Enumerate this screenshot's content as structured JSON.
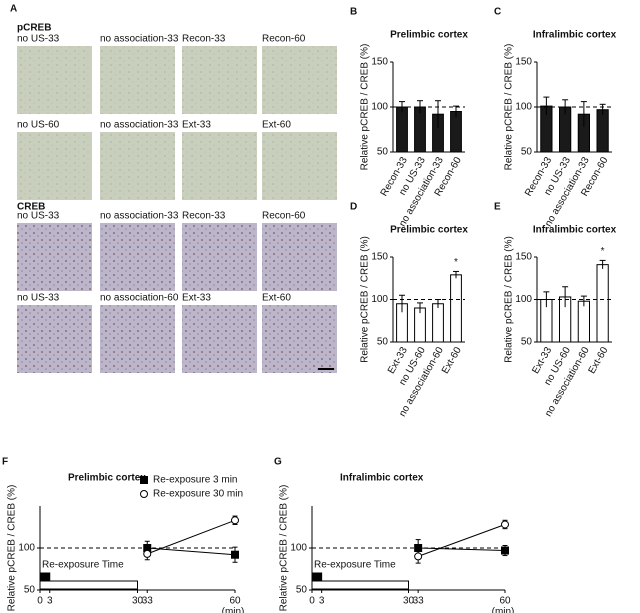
{
  "panel_a": {
    "label": "A",
    "groups": [
      {
        "title": "pCREB",
        "tiles": [
          [
            "no US-33",
            "no association-33",
            "Recon-33",
            "Recon-60"
          ],
          [
            "no US-60",
            "no association-33",
            "Ext-33",
            "Ext-60"
          ]
        ]
      },
      {
        "title": "CREB",
        "tiles": [
          [
            "no US-33",
            "no association-33",
            "Recon-33",
            "Recon-60"
          ],
          [
            "no US-33",
            "no association-60",
            "Ext-33",
            "Ext-60"
          ]
        ]
      }
    ]
  },
  "chart_data": [
    {
      "type": "bar",
      "panel": "B",
      "title": "Prelimbic cortex",
      "y_label": "Relative pCREB / CREB (%)",
      "categories": [
        "Recon-33",
        "no US-33",
        "no association-33",
        "Recon-60"
      ],
      "values": [
        100,
        100,
        92,
        95
      ],
      "errors": [
        6,
        7,
        15,
        6
      ],
      "color": "#1a1a1a",
      "ylim": [
        50,
        150
      ],
      "yticks": [
        50,
        100,
        150
      ],
      "reference_line": 100
    },
    {
      "type": "bar",
      "panel": "C",
      "title": "Infralimbic cortex",
      "y_label": "Relative pCREB / CREB (%)",
      "categories": [
        "Recon-33",
        "no US-33",
        "no association-33",
        "Recon-60"
      ],
      "values": [
        101,
        100,
        92,
        97
      ],
      "errors": [
        10,
        8,
        14,
        6
      ],
      "color": "#1a1a1a",
      "ylim": [
        50,
        150
      ],
      "yticks": [
        50,
        100,
        150
      ],
      "reference_line": 100
    },
    {
      "type": "bar",
      "panel": "D",
      "title": "Prelimbic cortex",
      "y_label": "Relative pCREB / CREB (%)",
      "categories": [
        "Ext-33",
        "no US-60",
        "no association-60",
        "Ext-60"
      ],
      "values": [
        95,
        90,
        95,
        129
      ],
      "errors": [
        10,
        6,
        5,
        4
      ],
      "color": "#ffffff",
      "ylim": [
        50,
        150
      ],
      "yticks": [
        50,
        100,
        150
      ],
      "reference_line": 100,
      "annotations": [
        {
          "category": "Ext-60",
          "text": "*"
        }
      ]
    },
    {
      "type": "bar",
      "panel": "E",
      "title": "Infralimbic cortex",
      "y_label": "Relative pCREB / CREB (%)",
      "categories": [
        "Ext-33",
        "no US-60",
        "no association-60",
        "Ext-60"
      ],
      "values": [
        100,
        103,
        98,
        141
      ],
      "errors": [
        9,
        12,
        6,
        5
      ],
      "color": "#ffffff",
      "ylim": [
        50,
        150
      ],
      "yticks": [
        50,
        100,
        150
      ],
      "reference_line": 100,
      "annotations": [
        {
          "category": "Ext-60",
          "text": "*"
        }
      ]
    },
    {
      "type": "line",
      "panel": "F",
      "title": "Prelimbic cortex",
      "y_label": "Relative pCREB / CREB (%)",
      "x_label": "(min)",
      "x": [
        33,
        60
      ],
      "series": [
        {
          "name": "Re-exposure 3 min",
          "color": "#000000",
          "marker": "square",
          "values": [
            100,
            92
          ],
          "errors": [
            8,
            9
          ],
          "exposure": [
            0,
            3
          ]
        },
        {
          "name": "Re-exposure 30 min",
          "color": "#ffffff",
          "marker": "circle",
          "values": [
            93,
            133
          ],
          "errors": [
            7,
            5
          ],
          "exposure": [
            0,
            30
          ]
        }
      ],
      "xlim": [
        0,
        60
      ],
      "ylim": [
        50,
        150
      ],
      "xticks": [
        0,
        3,
        30,
        33,
        60
      ],
      "yticks": [
        50,
        100
      ],
      "reference_line": 100,
      "legend": true,
      "exposure_label": "Re-exposure Time"
    },
    {
      "type": "line",
      "panel": "G",
      "title": "Infralimbic cortex",
      "y_label": "Relative pCREB / CREB (%)",
      "x_label": "(min)",
      "x": [
        33,
        60
      ],
      "series": [
        {
          "name": "Re-exposure 3 min",
          "color": "#000000",
          "marker": "square",
          "values": [
            100,
            97
          ],
          "errors": [
            10,
            6
          ],
          "exposure": [
            0,
            3
          ]
        },
        {
          "name": "Re-exposure 30 min",
          "color": "#ffffff",
          "marker": "circle",
          "values": [
            90,
            128
          ],
          "errors": [
            8,
            5
          ],
          "exposure": [
            0,
            30
          ]
        }
      ],
      "xlim": [
        0,
        60
      ],
      "ylim": [
        50,
        150
      ],
      "xticks": [
        0,
        3,
        30,
        33,
        60
      ],
      "yticks": [
        50,
        100
      ],
      "reference_line": 100,
      "legend": false,
      "exposure_label": "Re-exposure Time"
    }
  ]
}
